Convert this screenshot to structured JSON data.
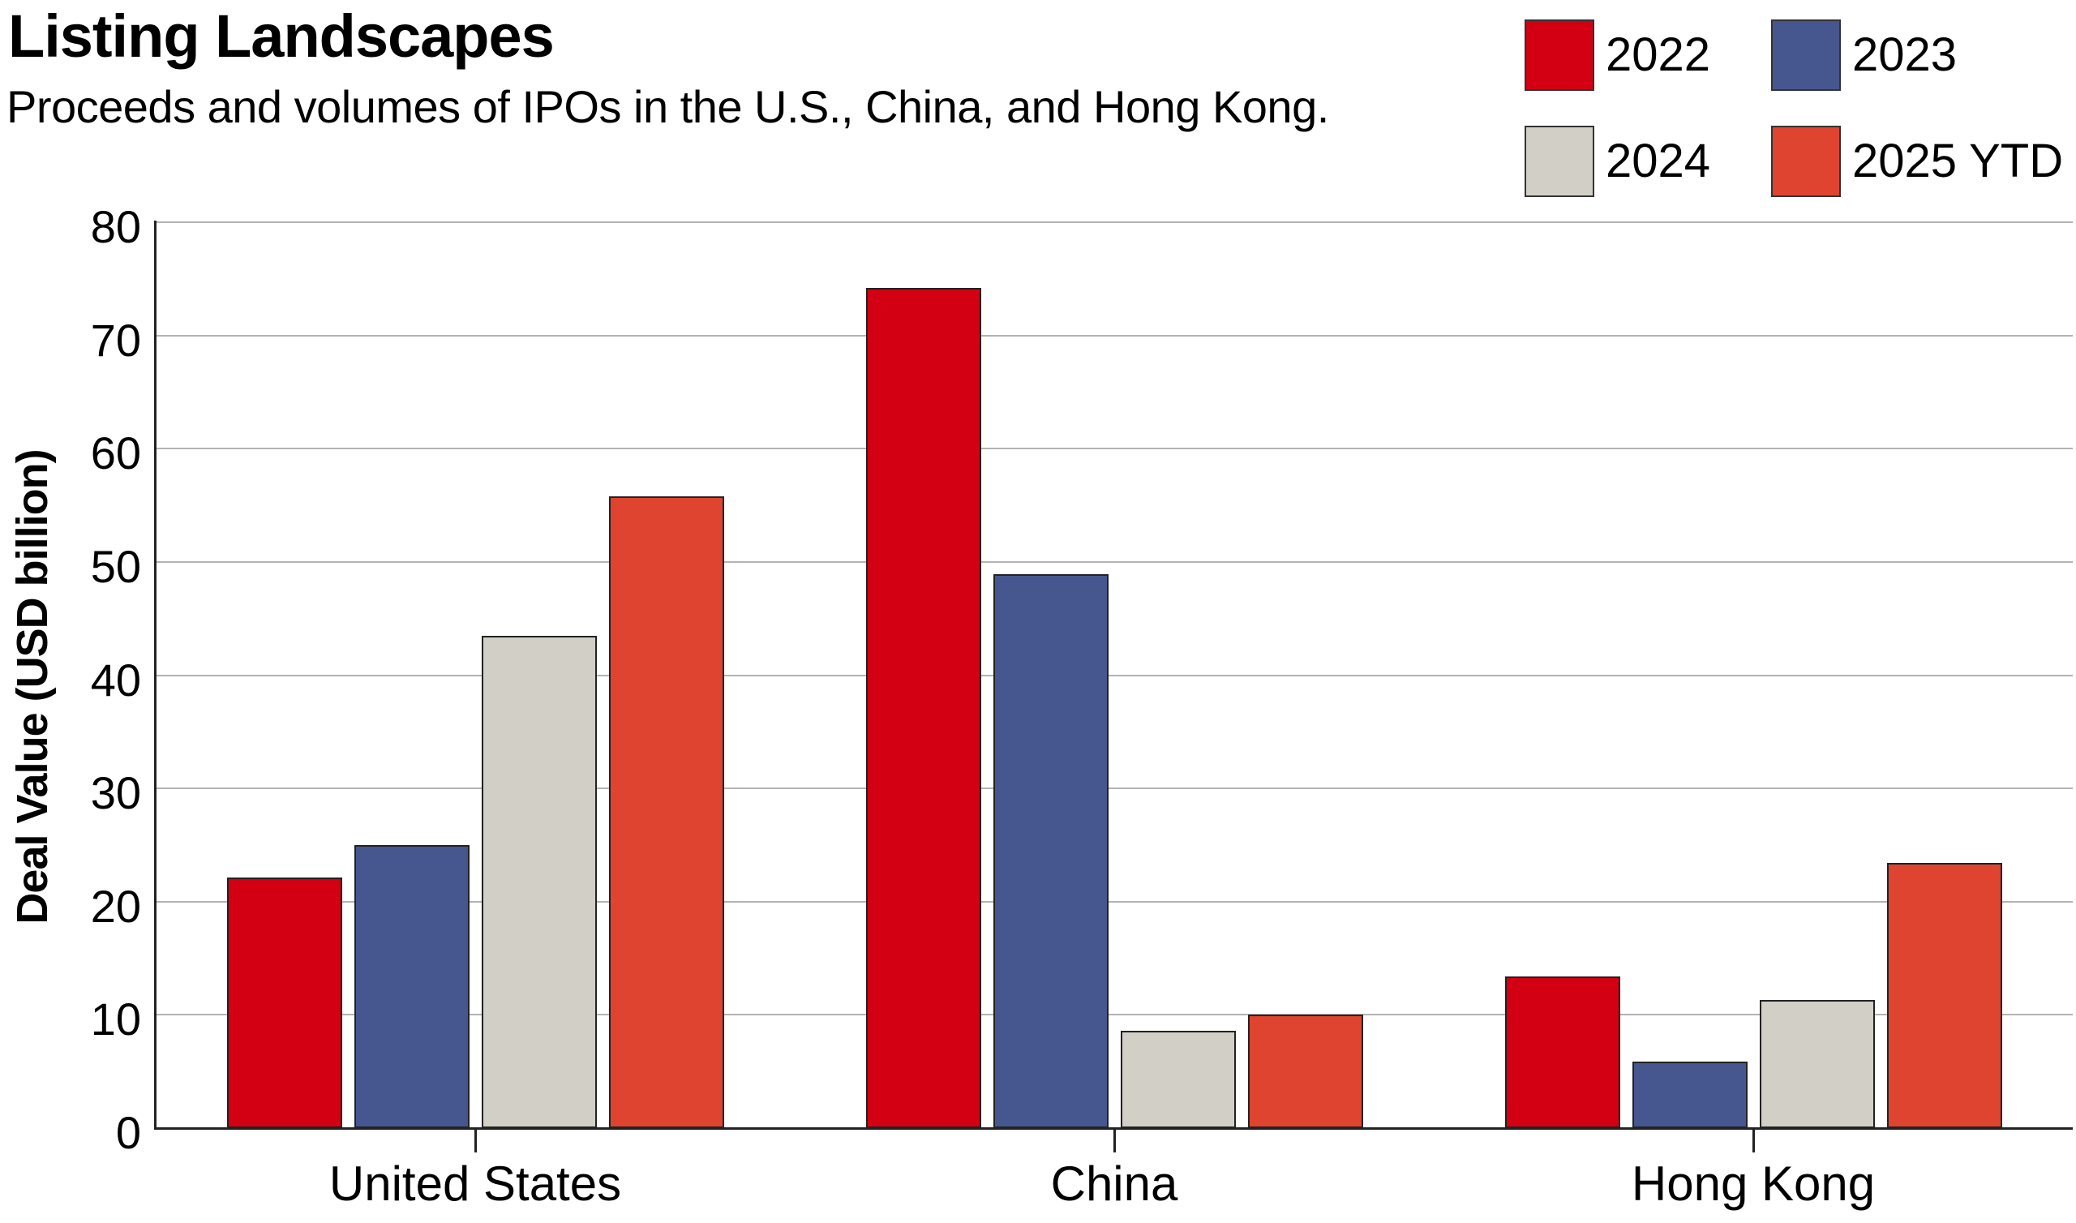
{
  "header": {
    "title": "Listing Landscapes",
    "subtitle": "Proceeds and volumes of IPOs in the U.S., China, and Hong Kong."
  },
  "legend": {
    "items": [
      {
        "label": "2022",
        "color": "#d20012"
      },
      {
        "label": "2023",
        "color": "#465790"
      },
      {
        "label": "2024",
        "color": "#d2cfc7"
      },
      {
        "label": "2025 YTD",
        "color": "#df4431"
      }
    ]
  },
  "axes": {
    "ylabel": "Deal Value (USD billion)",
    "yticks": [
      "0",
      "10",
      "20",
      "30",
      "40",
      "50",
      "60",
      "70",
      "80"
    ],
    "xticks": [
      "United States",
      "China",
      "Hong Kong"
    ]
  },
  "chart_data": {
    "type": "bar",
    "title": "Listing Landscapes",
    "subtitle": "Proceeds and volumes of IPOs in the U.S., China, and Hong Kong.",
    "categories": [
      "United States",
      "China",
      "Hong Kong"
    ],
    "series": [
      {
        "name": "2022",
        "color": "#d20012",
        "values": [
          22.1,
          74.2,
          13.4
        ]
      },
      {
        "name": "2023",
        "color": "#465790",
        "values": [
          25.0,
          48.9,
          5.9
        ]
      },
      {
        "name": "2024",
        "color": "#d2cfc7",
        "values": [
          43.5,
          8.6,
          11.3
        ]
      },
      {
        "name": "2025 YTD",
        "color": "#df4431",
        "values": [
          55.8,
          10.0,
          23.4
        ]
      }
    ],
    "xlabel": "",
    "ylabel": "Deal Value (USD billion)",
    "ylim": [
      0,
      80
    ],
    "yticks": [
      0,
      10,
      20,
      30,
      40,
      50,
      60,
      70,
      80
    ],
    "grid": "horizontal",
    "legend_position": "top-right"
  }
}
